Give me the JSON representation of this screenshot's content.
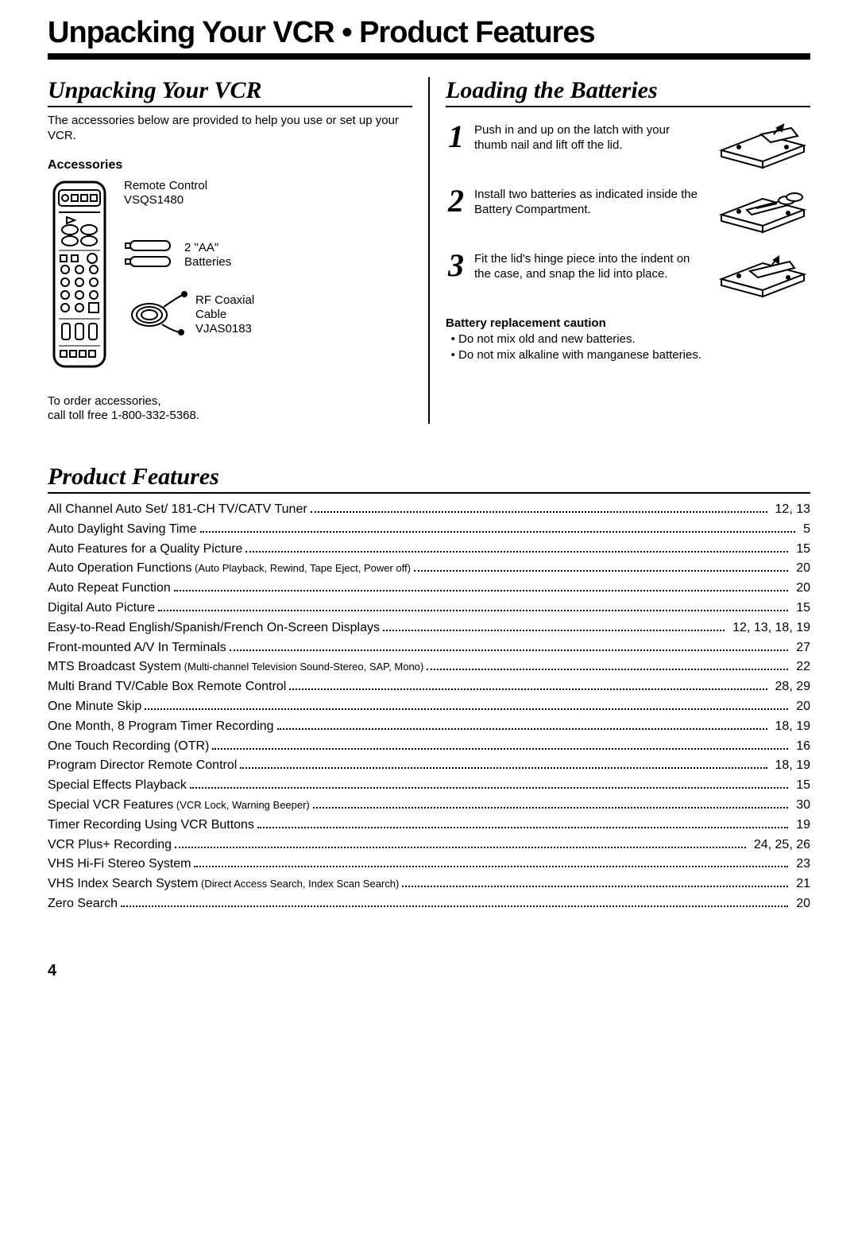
{
  "mainTitle": "Unpacking Your VCR • Product Features",
  "unpacking": {
    "heading": "Unpacking Your VCR",
    "intro": "The accessories below are provided to help you use or set up your VCR.",
    "sub": "Accessories",
    "items": {
      "remote": "Remote Control\nVSQS1480",
      "batteries": "2 \"AA\"\nBatteries",
      "cable": "RF Coaxial\nCable\nVJAS0183"
    },
    "order": "To order accessories,\ncall toll free 1-800-332-5368."
  },
  "loading": {
    "heading": "Loading the Batteries",
    "steps": [
      {
        "num": "1",
        "text": "Push in and up on the latch with your thumb nail and lift off the lid."
      },
      {
        "num": "2",
        "text": "Install two batteries as indicated inside the Battery Compartment."
      },
      {
        "num": "3",
        "text": "Fit the lid's hinge piece into the indent on the case, and snap the lid into place."
      }
    ],
    "cautionHead": "Battery replacement caution",
    "cautions": [
      "Do not mix old and new batteries.",
      "Do not mix alkaline with manganese batteries."
    ]
  },
  "features": {
    "heading": "Product Features",
    "rows": [
      {
        "label": "All Channel Auto Set/ 181-CH TV/CATV Tuner",
        "page": "12, 13"
      },
      {
        "label": "Auto Daylight Saving Time",
        "page": "5"
      },
      {
        "label": "Auto Features for a Quality Picture",
        "page": "15"
      },
      {
        "label": "Auto Operation Functions",
        "sub": " (Auto Playback, Rewind, Tape Eject, Power off)",
        "page": "20"
      },
      {
        "label": "Auto Repeat Function",
        "page": "20"
      },
      {
        "label": "Digital Auto Picture",
        "page": "15"
      },
      {
        "label": "Easy-to-Read English/Spanish/French On-Screen Displays",
        "page": "12, 13, 18, 19"
      },
      {
        "label": "Front-mounted A/V In Terminals",
        "page": "27"
      },
      {
        "label": "MTS Broadcast System",
        "sub": " (Multi-channel Television Sound-Stereo, SAP, Mono)",
        "page": "22"
      },
      {
        "label": "Multi Brand TV/Cable Box Remote Control",
        "page": "28, 29"
      },
      {
        "label": "One Minute Skip",
        "page": "20"
      },
      {
        "label": "One Month, 8 Program Timer Recording",
        "page": "18, 19"
      },
      {
        "label": "One Touch Recording (OTR)",
        "page": "16"
      },
      {
        "label": "Program Director Remote Control",
        "page": "18, 19"
      },
      {
        "label": "Special Effects Playback",
        "page": "15"
      },
      {
        "label": "Special VCR Features",
        "sub": " (VCR Lock, Warning Beeper)",
        "page": "30"
      },
      {
        "label": "Timer Recording Using VCR Buttons",
        "page": "19"
      },
      {
        "label": "VCR Plus+ Recording",
        "page": "24, 25, 26"
      },
      {
        "label": "VHS Hi-Fi Stereo System",
        "page": "23"
      },
      {
        "label": "VHS Index Search System",
        "sub": " (Direct Access Search, Index Scan Search)",
        "page": "21"
      },
      {
        "label": "Zero Search",
        "page": "20"
      }
    ]
  },
  "pageNumber": "4"
}
